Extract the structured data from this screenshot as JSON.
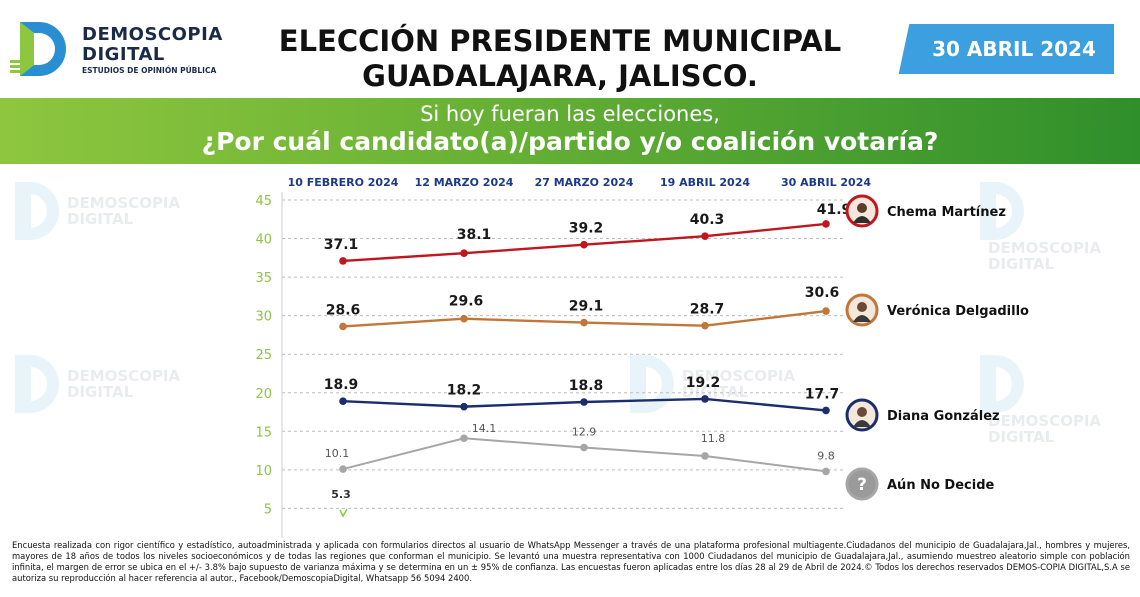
{
  "header": {
    "logo_name_line1": "DEMOSCOPIA",
    "logo_name_line2": "DIGITAL",
    "logo_subtitle": "ESTUDIOS DE OPINIÓN PÚBLICA",
    "title_line1": "ELECCIÓN PRESIDENTE MUNICIPAL",
    "title_line2": "GUADALAJARA, JALISCO.",
    "date": "30 ABRIL 2024"
  },
  "banner": {
    "line1": "Si hoy fueran las elecciones,",
    "line2": "¿Por cuál candidato(a)/partido y/o coalición votaría?"
  },
  "watermark": {
    "line1": "DEMOSCOPIA",
    "line2": "DIGITAL"
  },
  "colors": {
    "chema": "#c0171f",
    "veronica": "#c2773a",
    "diana": "#1b2d6b",
    "undecided": "#a6a6a6",
    "axis": "#8cc63f",
    "date_labels": "#1c3a8a"
  },
  "chart_data": {
    "type": "line",
    "x": [
      "10 FEBRERO 2024",
      "12 MARZO 2024",
      "27 MARZO 2024",
      "19 ABRIL 2024",
      "30 ABRIL 2024"
    ],
    "ylim": [
      0,
      45
    ],
    "yticks": [
      5,
      10,
      15,
      20,
      25,
      30,
      35,
      40,
      45
    ],
    "grid": true,
    "legend": "right",
    "series": [
      {
        "name": "Chema Martínez",
        "values": [
          37.1,
          38.1,
          39.2,
          40.3,
          41.9
        ],
        "labels": [
          "37.1",
          "38.1",
          "39.2",
          "40.3",
          "41.9"
        ],
        "color_key": "chema",
        "icon": "man-portrait-icon"
      },
      {
        "name": "Verónica Delgadillo",
        "values": [
          28.6,
          29.6,
          29.1,
          28.7,
          30.6
        ],
        "labels": [
          "28.6",
          "29.6",
          "29.1",
          "28.7",
          "30.6"
        ],
        "color_key": "veronica",
        "icon": "woman-portrait-icon"
      },
      {
        "name": "Diana González",
        "values": [
          18.9,
          18.2,
          18.8,
          19.2,
          17.7
        ],
        "labels": [
          "18.9",
          "18.2",
          "18.8",
          "19.2",
          "17.7"
        ],
        "color_key": "diana",
        "icon": "woman-portrait-icon"
      },
      {
        "name": "Aún No Decide",
        "values": [
          10.1,
          14.1,
          12.9,
          11.8,
          9.8
        ],
        "labels": [
          "10.1",
          "14.1",
          "12.9",
          "11.8",
          "9.8"
        ],
        "color_key": "undecided",
        "icon": "question-mark-icon"
      }
    ],
    "annotations": [
      "5.3"
    ]
  },
  "footer": {
    "text": "Encuesta realizada con rigor científico y estadístico, autoadministrada y aplicada con formularios directos al usuario de WhatsApp Messenger a través de una plataforma profesional multiagente.Ciudadanos del municipio de Guadalajara,Jal., hombres y mujeres, mayores de 18 años de todos los niveles socioeconómicos y de todas las regiones que conforman el municipio. Se levantó una muestra representativa con 1000 Ciudadanos del municipio de Guadalajara,Jal., asumiendo muestreo aleatorio simple con población infinita, el margen de error se ubica en el +/- 3.8% bajo supuesto de varianza máxima y se determina en un ± 95% de confianza. Las encuestas fueron aplicadas entre los días 28 al 29 de Abril de 2024.© Todos los derechos reservados DEMOS-COPIA DIGITAL,S.A se autoriza su reproducción al hacer referencia al autor., Facebook/DemoscopiaDigital, Whatsapp 56 5094 2400."
  }
}
